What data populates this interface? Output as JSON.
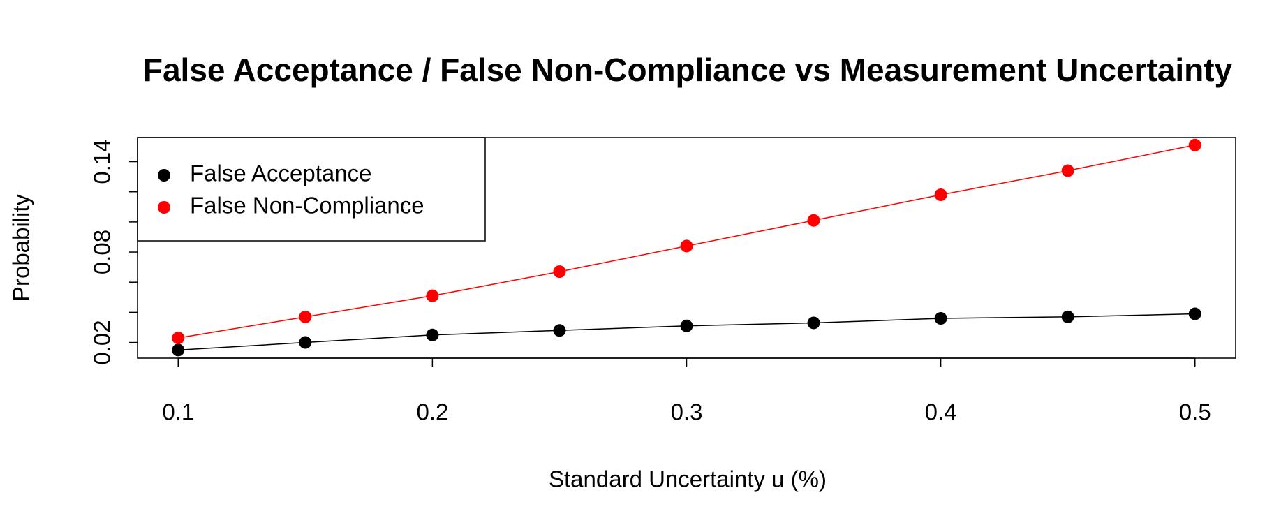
{
  "chart_data": {
    "type": "line",
    "title": "False Acceptance / False Non-Compliance vs Measurement Uncertainty",
    "x_label": "Standard Uncertainty u (%)",
    "y_label": "Probability",
    "x": [
      0.1,
      0.15,
      0.2,
      0.25,
      0.3,
      0.35,
      0.4,
      0.45,
      0.5
    ],
    "series": [
      {
        "name": "False Acceptance",
        "color": "#000000",
        "values": [
          0.015,
          0.02,
          0.025,
          0.028,
          0.031,
          0.033,
          0.036,
          0.037,
          0.039
        ]
      },
      {
        "name": "False Non-Compliance",
        "color": "#ff0000",
        "values": [
          0.023,
          0.037,
          0.051,
          0.067,
          0.084,
          0.101,
          0.118,
          0.134,
          0.151
        ]
      }
    ],
    "xlim": [
      0.084,
      0.516
    ],
    "ylim": [
      0.0096,
      0.156
    ],
    "xticks": [
      0.1,
      0.2,
      0.3,
      0.4,
      0.5
    ],
    "yticks": [
      0.02,
      0.08,
      0.14
    ],
    "yminor_ticks": [
      0.04,
      0.06,
      0.1,
      0.12
    ],
    "legend": "top-left"
  }
}
